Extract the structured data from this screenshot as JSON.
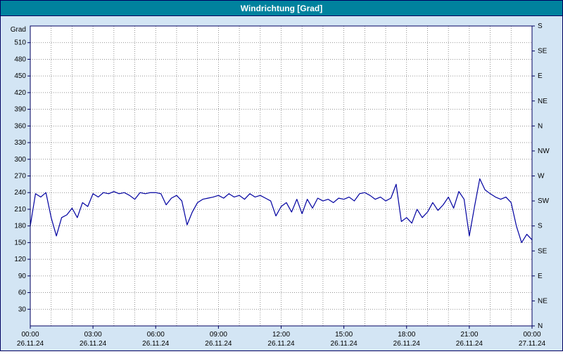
{
  "title": "Windrichtung [Grad]",
  "colors": {
    "titlebar_bg": "#00829e",
    "titlebar_text": "#ffffff",
    "window_bg": "#d3e5f4",
    "plot_bg": "#ffffff",
    "plot_border": "#000060",
    "grid": "#707070",
    "line": "#0000a0",
    "axis_text": "#000000",
    "outer_border": "#000060"
  },
  "chart_data": {
    "type": "line",
    "title": "Windrichtung [Grad]",
    "ylabel": "Grad",
    "ylim": [
      0,
      540
    ],
    "grid": "dotted",
    "y_ticks": [
      30,
      60,
      90,
      120,
      150,
      180,
      210,
      240,
      270,
      300,
      330,
      360,
      390,
      420,
      450,
      480,
      510
    ],
    "right_axis": {
      "values": [
        540,
        495,
        450,
        405,
        360,
        315,
        270,
        225,
        180,
        135,
        90,
        45,
        0
      ],
      "labels": [
        "S",
        "SE",
        "E",
        "NE",
        "N",
        "NW",
        "W",
        "SW",
        "S",
        "SE",
        "E",
        "NE",
        "N"
      ]
    },
    "x_axis": {
      "unit": "hours",
      "range_hours": [
        0,
        24
      ],
      "minor_grid_step_hours": 1,
      "major_tick_hours": [
        0,
        3,
        6,
        9,
        12,
        15,
        18,
        21,
        24
      ],
      "major_tick_times": [
        "00:00",
        "03:00",
        "06:00",
        "09:00",
        "12:00",
        "15:00",
        "18:00",
        "21:00",
        "00:00"
      ],
      "major_tick_dates": [
        "26.11.24",
        "26.11.24",
        "26.11.24",
        "26.11.24",
        "26.11.24",
        "26.11.24",
        "26.11.24",
        "26.11.24",
        "27.11.24"
      ]
    },
    "series": [
      {
        "name": "Windrichtung",
        "color": "#0000a0",
        "x_start_minute": 0,
        "x_step_minutes": 15,
        "values": [
          180,
          238,
          232,
          240,
          195,
          162,
          195,
          200,
          212,
          195,
          222,
          215,
          238,
          232,
          240,
          238,
          242,
          238,
          240,
          235,
          228,
          240,
          238,
          240,
          240,
          238,
          218,
          230,
          235,
          225,
          182,
          205,
          222,
          228,
          230,
          232,
          235,
          230,
          238,
          232,
          235,
          228,
          238,
          232,
          235,
          230,
          225,
          198,
          215,
          222,
          205,
          228,
          202,
          228,
          212,
          230,
          225,
          228,
          222,
          230,
          228,
          232,
          225,
          238,
          240,
          235,
          228,
          232,
          225,
          230,
          255,
          188,
          195,
          185,
          210,
          195,
          205,
          222,
          208,
          218,
          232,
          212,
          242,
          228,
          162,
          215,
          265,
          245,
          238,
          232,
          228,
          232,
          222,
          180,
          150,
          165,
          155
        ]
      }
    ]
  }
}
